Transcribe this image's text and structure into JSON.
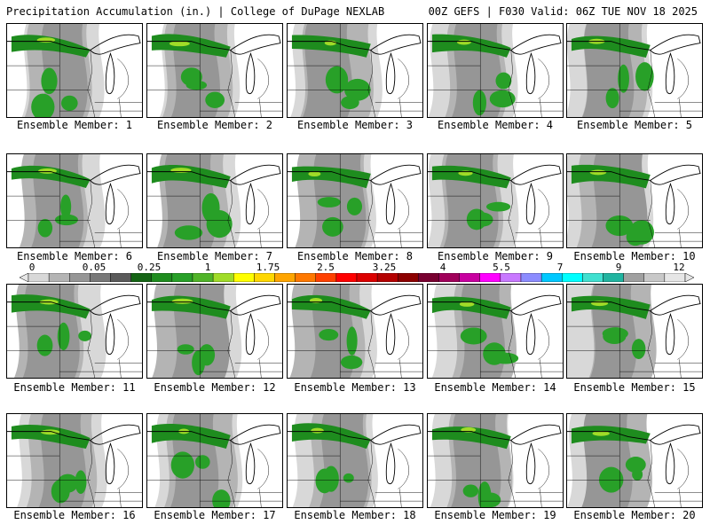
{
  "header": {
    "title": "Precipitation Accumulation (in.) | College of DuPage NEXLAB",
    "run_info": "00Z GEFS | F030 Valid: 06Z TUE NOV 18 2025"
  },
  "colorbar": {
    "labels": [
      "0",
      "0.05",
      "0.25",
      "1",
      "1.75",
      "2.5",
      "3.25",
      "4",
      "5.5",
      "7",
      "9",
      "12"
    ],
    "colors": [
      "#d8d8d8",
      "#b4b4b4",
      "#969696",
      "#787878",
      "#5a5a5a",
      "#146414",
      "#1e8c1e",
      "#28a028",
      "#50b428",
      "#a0dc28",
      "#ffff00",
      "#ffd700",
      "#ffa500",
      "#ff7800",
      "#ff4000",
      "#ff0000",
      "#dc0000",
      "#b40000",
      "#8c0000",
      "#780030",
      "#a0005a",
      "#c800a0",
      "#ff00ff",
      "#c878ff",
      "#8c8cff",
      "#00c8ff",
      "#00ffff",
      "#40e0d0",
      "#20b4a0",
      "#a0a0a0",
      "#c8c8c8",
      "#e6e6e6"
    ]
  },
  "panels": [
    {
      "label": "Ensemble Member: 1"
    },
    {
      "label": "Ensemble Member: 2"
    },
    {
      "label": "Ensemble Member: 3"
    },
    {
      "label": "Ensemble Member: 4"
    },
    {
      "label": "Ensemble Member: 5"
    },
    {
      "label": "Ensemble Member: 6"
    },
    {
      "label": "Ensemble Member: 7"
    },
    {
      "label": "Ensemble Member: 8"
    },
    {
      "label": "Ensemble Member: 9"
    },
    {
      "label": "Ensemble Member: 10"
    },
    {
      "label": "Ensemble Member: 11"
    },
    {
      "label": "Ensemble Member: 12"
    },
    {
      "label": "Ensemble Member: 13"
    },
    {
      "label": "Ensemble Member: 14"
    },
    {
      "label": "Ensemble Member: 15"
    },
    {
      "label": "Ensemble Member: 16"
    },
    {
      "label": "Ensemble Member: 17"
    },
    {
      "label": "Ensemble Member: 18"
    },
    {
      "label": "Ensemble Member: 19"
    },
    {
      "label": "Ensemble Member: 20"
    }
  ]
}
